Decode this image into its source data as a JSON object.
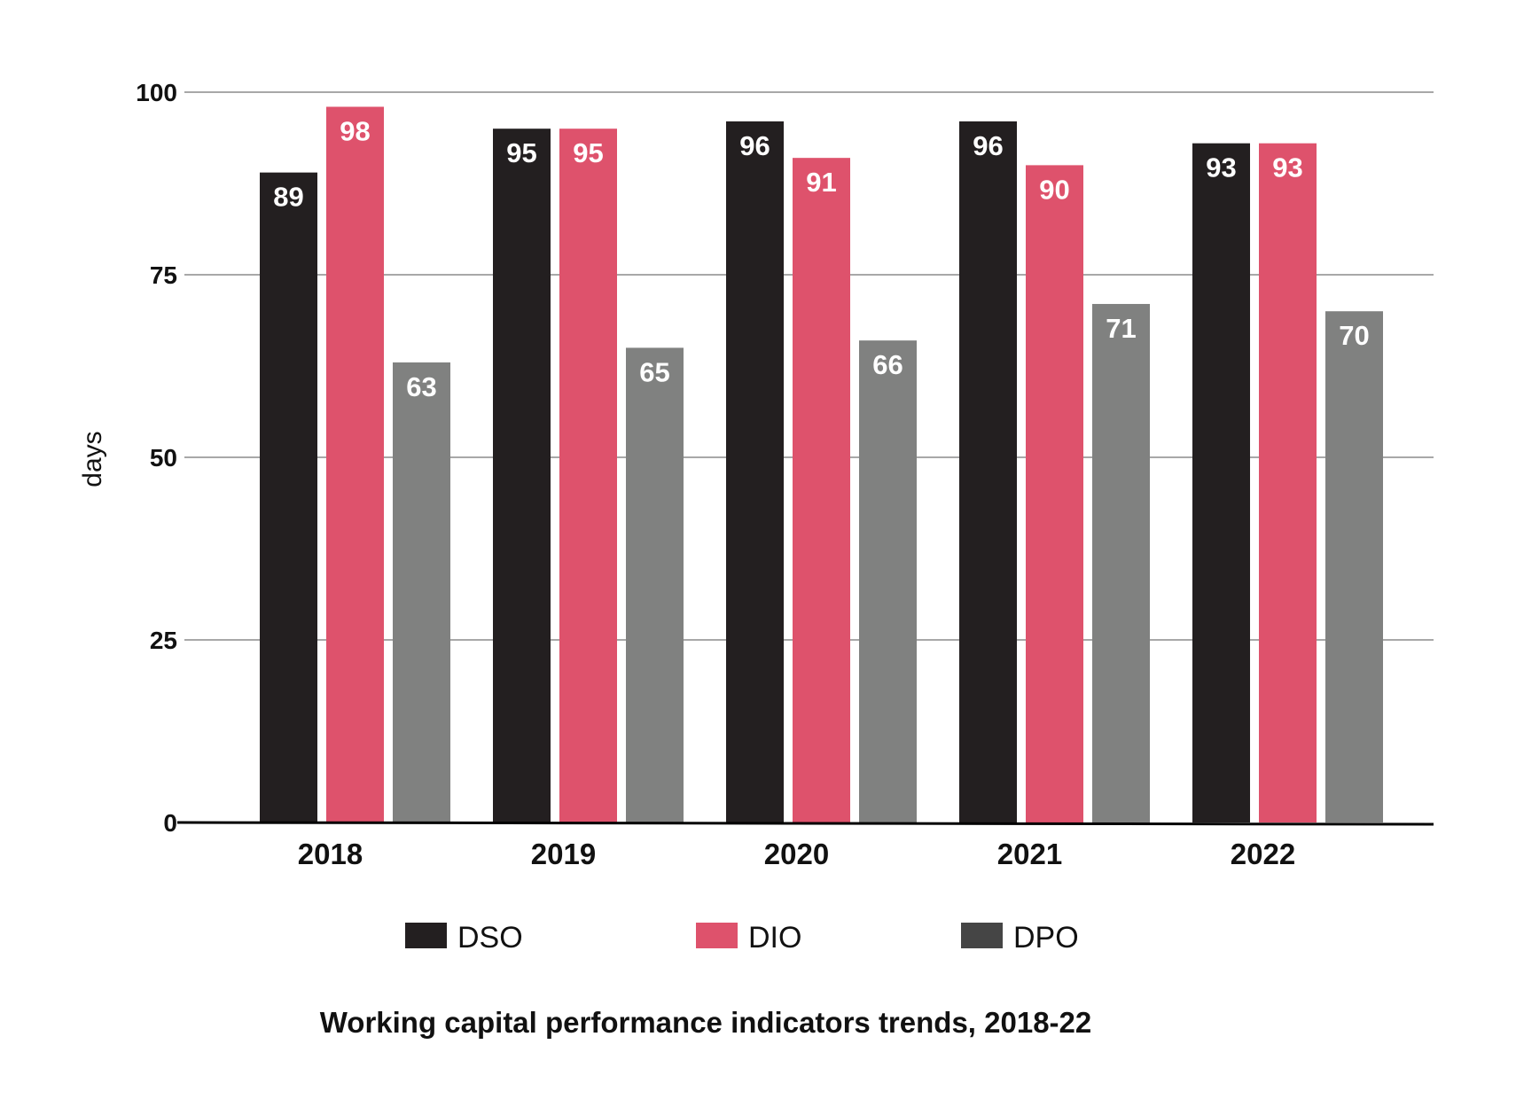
{
  "chart_data": {
    "type": "bar",
    "title": "Working capital performance indicators trends, 2018-22",
    "xlabel": "",
    "ylabel": "days",
    "ylim": [
      0,
      100
    ],
    "yticks": [
      "0",
      "25",
      "50",
      "75",
      "100"
    ],
    "grid": true,
    "legend_position": "bottom",
    "categories": [
      "2018",
      "2019",
      "2020",
      "2021",
      "2022"
    ],
    "series": [
      {
        "name": "DSO",
        "color": "#231f20",
        "legend_color": "#231f20",
        "values": [
          89,
          95,
          96,
          96,
          93
        ]
      },
      {
        "name": "DIO",
        "color": "#de526c",
        "legend_color": "#de526c",
        "values": [
          98,
          95,
          91,
          90,
          93
        ]
      },
      {
        "name": "DPO",
        "color": "#808180",
        "legend_color": "#454545",
        "values": [
          63,
          65,
          66,
          71,
          70
        ]
      }
    ]
  }
}
